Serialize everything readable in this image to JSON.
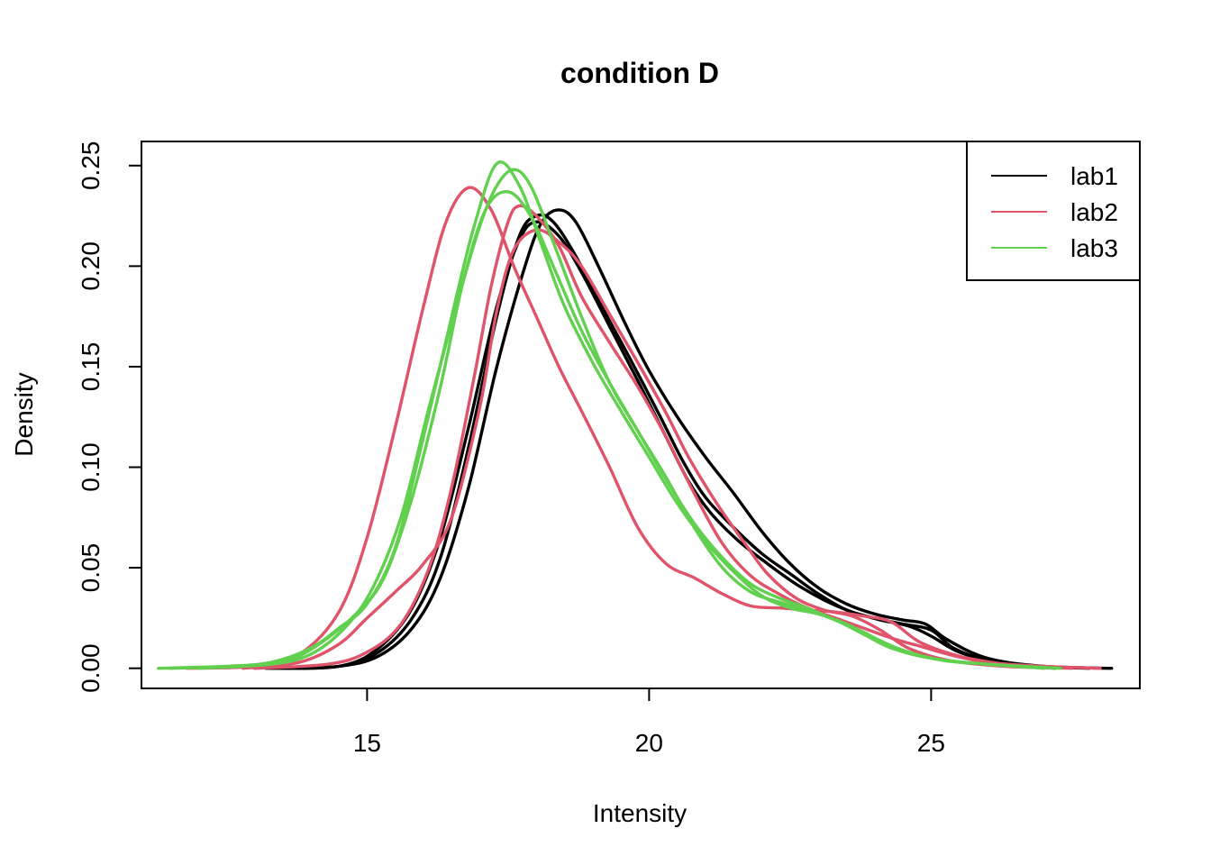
{
  "chart_data": {
    "type": "line",
    "title": "condition D",
    "xlabel": "Intensity",
    "ylabel": "Density",
    "xlim": [
      11.0,
      28.7
    ],
    "ylim": [
      -0.01,
      0.262
    ],
    "x_ticks": [
      15,
      20,
      25
    ],
    "x_tick_labels": [
      "15",
      "20",
      "25"
    ],
    "y_ticks": [
      0.0,
      0.05,
      0.1,
      0.15,
      0.2,
      0.25
    ],
    "y_tick_labels": [
      "0.00",
      "0.05",
      "0.10",
      "0.15",
      "0.20",
      "0.25"
    ],
    "grid": false,
    "legend_position": "top-right",
    "legend": [
      {
        "label": "lab1",
        "color": "#000000"
      },
      {
        "label": "lab2",
        "color": "#DF536B"
      },
      {
        "label": "lab3",
        "color": "#61D04F"
      }
    ],
    "series": [
      {
        "group": "lab1",
        "color": "#000000",
        "points": [
          [
            13.3,
            0.0
          ],
          [
            14.5,
            0.001
          ],
          [
            15.2,
            0.008
          ],
          [
            15.8,
            0.025
          ],
          [
            16.3,
            0.055
          ],
          [
            16.8,
            0.11
          ],
          [
            17.3,
            0.175
          ],
          [
            17.7,
            0.215
          ],
          [
            18.0,
            0.225
          ],
          [
            18.3,
            0.222
          ],
          [
            18.7,
            0.205
          ],
          [
            19.2,
            0.178
          ],
          [
            19.7,
            0.152
          ],
          [
            20.2,
            0.125
          ],
          [
            20.6,
            0.103
          ],
          [
            21.0,
            0.085
          ],
          [
            21.5,
            0.07
          ],
          [
            22.0,
            0.057
          ],
          [
            22.5,
            0.047
          ],
          [
            23.0,
            0.037
          ],
          [
            23.5,
            0.029
          ],
          [
            24.0,
            0.025
          ],
          [
            24.5,
            0.022
          ],
          [
            25.0,
            0.019
          ],
          [
            25.4,
            0.01
          ],
          [
            26.0,
            0.004
          ],
          [
            26.8,
            0.001
          ],
          [
            27.8,
            0.0
          ]
        ]
      },
      {
        "group": "lab1",
        "color": "#000000",
        "points": [
          [
            13.5,
            0.0
          ],
          [
            14.5,
            0.001
          ],
          [
            15.2,
            0.006
          ],
          [
            15.8,
            0.02
          ],
          [
            16.3,
            0.045
          ],
          [
            16.8,
            0.09
          ],
          [
            17.3,
            0.15
          ],
          [
            17.8,
            0.2
          ],
          [
            18.1,
            0.222
          ],
          [
            18.4,
            0.228
          ],
          [
            18.7,
            0.222
          ],
          [
            19.1,
            0.2
          ],
          [
            19.6,
            0.17
          ],
          [
            20.0,
            0.148
          ],
          [
            20.5,
            0.125
          ],
          [
            21.0,
            0.105
          ],
          [
            21.5,
            0.087
          ],
          [
            22.0,
            0.068
          ],
          [
            22.5,
            0.052
          ],
          [
            23.0,
            0.04
          ],
          [
            23.5,
            0.032
          ],
          [
            24.0,
            0.027
          ],
          [
            24.5,
            0.024
          ],
          [
            24.9,
            0.022
          ],
          [
            25.3,
            0.014
          ],
          [
            26.0,
            0.005
          ],
          [
            27.0,
            0.001
          ],
          [
            28.2,
            0.0
          ]
        ]
      },
      {
        "group": "lab1",
        "color": "#000000",
        "points": [
          [
            13.2,
            0.0
          ],
          [
            14.5,
            0.001
          ],
          [
            15.2,
            0.01
          ],
          [
            15.8,
            0.03
          ],
          [
            16.3,
            0.065
          ],
          [
            16.8,
            0.12
          ],
          [
            17.3,
            0.18
          ],
          [
            17.7,
            0.213
          ],
          [
            18.0,
            0.222
          ],
          [
            18.4,
            0.215
          ],
          [
            18.8,
            0.197
          ],
          [
            19.3,
            0.17
          ],
          [
            19.8,
            0.143
          ],
          [
            20.3,
            0.115
          ],
          [
            20.7,
            0.093
          ],
          [
            21.1,
            0.077
          ],
          [
            21.6,
            0.063
          ],
          [
            22.1,
            0.052
          ],
          [
            22.6,
            0.042
          ],
          [
            23.1,
            0.034
          ],
          [
            23.6,
            0.028
          ],
          [
            24.1,
            0.024
          ],
          [
            24.6,
            0.021
          ],
          [
            25.0,
            0.016
          ],
          [
            25.5,
            0.008
          ],
          [
            26.2,
            0.003
          ],
          [
            27.2,
            0.0
          ]
        ]
      },
      {
        "group": "lab2",
        "color": "#DF536B",
        "points": [
          [
            11.8,
            0.0
          ],
          [
            13.0,
            0.001
          ],
          [
            13.8,
            0.007
          ],
          [
            14.5,
            0.028
          ],
          [
            15.0,
            0.065
          ],
          [
            15.5,
            0.12
          ],
          [
            16.0,
            0.18
          ],
          [
            16.4,
            0.222
          ],
          [
            16.8,
            0.239
          ],
          [
            17.2,
            0.228
          ],
          [
            17.6,
            0.2
          ],
          [
            18.0,
            0.175
          ],
          [
            18.4,
            0.15
          ],
          [
            18.8,
            0.128
          ],
          [
            19.3,
            0.1
          ],
          [
            19.8,
            0.07
          ],
          [
            20.3,
            0.052
          ],
          [
            20.8,
            0.045
          ],
          [
            21.3,
            0.037
          ],
          [
            21.8,
            0.031
          ],
          [
            22.3,
            0.03
          ],
          [
            22.8,
            0.029
          ],
          [
            23.3,
            0.028
          ],
          [
            23.8,
            0.026
          ],
          [
            24.3,
            0.023
          ],
          [
            24.8,
            0.013
          ],
          [
            25.5,
            0.006
          ],
          [
            26.3,
            0.002
          ],
          [
            27.0,
            0.0
          ]
        ]
      },
      {
        "group": "lab2",
        "color": "#DF536B",
        "points": [
          [
            12.8,
            0.0
          ],
          [
            13.8,
            0.003
          ],
          [
            14.5,
            0.012
          ],
          [
            15.0,
            0.025
          ],
          [
            15.5,
            0.038
          ],
          [
            16.0,
            0.052
          ],
          [
            16.5,
            0.075
          ],
          [
            17.0,
            0.13
          ],
          [
            17.3,
            0.178
          ],
          [
            17.6,
            0.208
          ],
          [
            18.0,
            0.218
          ],
          [
            18.4,
            0.212
          ],
          [
            18.8,
            0.2
          ],
          [
            19.3,
            0.176
          ],
          [
            19.8,
            0.152
          ],
          [
            20.3,
            0.127
          ],
          [
            20.7,
            0.105
          ],
          [
            21.2,
            0.082
          ],
          [
            21.7,
            0.062
          ],
          [
            22.1,
            0.047
          ],
          [
            22.6,
            0.035
          ],
          [
            23.1,
            0.029
          ],
          [
            23.6,
            0.026
          ],
          [
            24.1,
            0.019
          ],
          [
            24.6,
            0.01
          ],
          [
            25.3,
            0.004
          ],
          [
            26.3,
            0.001
          ],
          [
            27.5,
            0.0
          ]
        ]
      },
      {
        "group": "lab2",
        "color": "#DF536B",
        "points": [
          [
            13.0,
            0.0
          ],
          [
            14.3,
            0.002
          ],
          [
            15.0,
            0.008
          ],
          [
            15.6,
            0.022
          ],
          [
            16.1,
            0.05
          ],
          [
            16.5,
            0.09
          ],
          [
            16.9,
            0.145
          ],
          [
            17.2,
            0.19
          ],
          [
            17.5,
            0.222
          ],
          [
            17.7,
            0.23
          ],
          [
            18.0,
            0.225
          ],
          [
            18.4,
            0.21
          ],
          [
            18.8,
            0.185
          ],
          [
            19.3,
            0.162
          ],
          [
            19.8,
            0.14
          ],
          [
            20.3,
            0.115
          ],
          [
            20.8,
            0.087
          ],
          [
            21.3,
            0.062
          ],
          [
            21.8,
            0.046
          ],
          [
            22.3,
            0.037
          ],
          [
            22.8,
            0.03
          ],
          [
            23.3,
            0.025
          ],
          [
            23.8,
            0.02
          ],
          [
            24.3,
            0.015
          ],
          [
            24.8,
            0.011
          ],
          [
            25.3,
            0.007
          ],
          [
            26.0,
            0.003
          ],
          [
            27.0,
            0.001
          ],
          [
            28.0,
            0.0
          ]
        ]
      },
      {
        "group": "lab3",
        "color": "#61D04F",
        "points": [
          [
            11.3,
            0.0
          ],
          [
            12.5,
            0.001
          ],
          [
            13.3,
            0.003
          ],
          [
            14.0,
            0.01
          ],
          [
            14.5,
            0.02
          ],
          [
            15.0,
            0.032
          ],
          [
            15.5,
            0.06
          ],
          [
            16.0,
            0.115
          ],
          [
            16.5,
            0.175
          ],
          [
            16.9,
            0.22
          ],
          [
            17.3,
            0.251
          ],
          [
            17.7,
            0.24
          ],
          [
            18.1,
            0.21
          ],
          [
            18.5,
            0.18
          ],
          [
            19.0,
            0.152
          ],
          [
            19.5,
            0.128
          ],
          [
            20.0,
            0.105
          ],
          [
            20.5,
            0.082
          ],
          [
            21.0,
            0.063
          ],
          [
            21.5,
            0.048
          ],
          [
            22.0,
            0.036
          ],
          [
            22.5,
            0.03
          ],
          [
            23.0,
            0.027
          ],
          [
            23.5,
            0.022
          ],
          [
            24.0,
            0.015
          ],
          [
            24.5,
            0.009
          ],
          [
            25.2,
            0.004
          ],
          [
            26.0,
            0.002
          ],
          [
            27.2,
            0.0
          ]
        ]
      },
      {
        "group": "lab3",
        "color": "#61D04F",
        "points": [
          [
            11.5,
            0.0
          ],
          [
            12.8,
            0.001
          ],
          [
            13.6,
            0.004
          ],
          [
            14.2,
            0.013
          ],
          [
            14.8,
            0.027
          ],
          [
            15.3,
            0.045
          ],
          [
            15.8,
            0.085
          ],
          [
            16.3,
            0.14
          ],
          [
            16.7,
            0.192
          ],
          [
            17.1,
            0.228
          ],
          [
            17.5,
            0.237
          ],
          [
            17.9,
            0.225
          ],
          [
            18.3,
            0.2
          ],
          [
            18.8,
            0.168
          ],
          [
            19.3,
            0.142
          ],
          [
            19.8,
            0.118
          ],
          [
            20.3,
            0.094
          ],
          [
            20.8,
            0.072
          ],
          [
            21.3,
            0.055
          ],
          [
            21.8,
            0.042
          ],
          [
            22.3,
            0.035
          ],
          [
            22.8,
            0.03
          ],
          [
            23.3,
            0.024
          ],
          [
            23.8,
            0.018
          ],
          [
            24.3,
            0.011
          ],
          [
            25.0,
            0.005
          ],
          [
            26.0,
            0.002
          ],
          [
            27.0,
            0.0
          ]
        ]
      },
      {
        "group": "lab3",
        "color": "#61D04F",
        "points": [
          [
            12.0,
            0.0
          ],
          [
            13.3,
            0.002
          ],
          [
            14.0,
            0.007
          ],
          [
            14.6,
            0.02
          ],
          [
            15.1,
            0.04
          ],
          [
            15.6,
            0.075
          ],
          [
            16.1,
            0.13
          ],
          [
            16.6,
            0.182
          ],
          [
            17.0,
            0.22
          ],
          [
            17.3,
            0.24
          ],
          [
            17.6,
            0.248
          ],
          [
            17.9,
            0.24
          ],
          [
            18.3,
            0.212
          ],
          [
            18.8,
            0.175
          ],
          [
            19.3,
            0.142
          ],
          [
            19.8,
            0.118
          ],
          [
            20.3,
            0.095
          ],
          [
            20.8,
            0.07
          ],
          [
            21.3,
            0.05
          ],
          [
            21.8,
            0.038
          ],
          [
            22.3,
            0.033
          ],
          [
            22.8,
            0.029
          ],
          [
            23.3,
            0.024
          ],
          [
            23.8,
            0.017
          ],
          [
            24.3,
            0.01
          ],
          [
            25.0,
            0.005
          ],
          [
            26.0,
            0.002
          ],
          [
            27.3,
            0.0
          ]
        ]
      }
    ]
  }
}
